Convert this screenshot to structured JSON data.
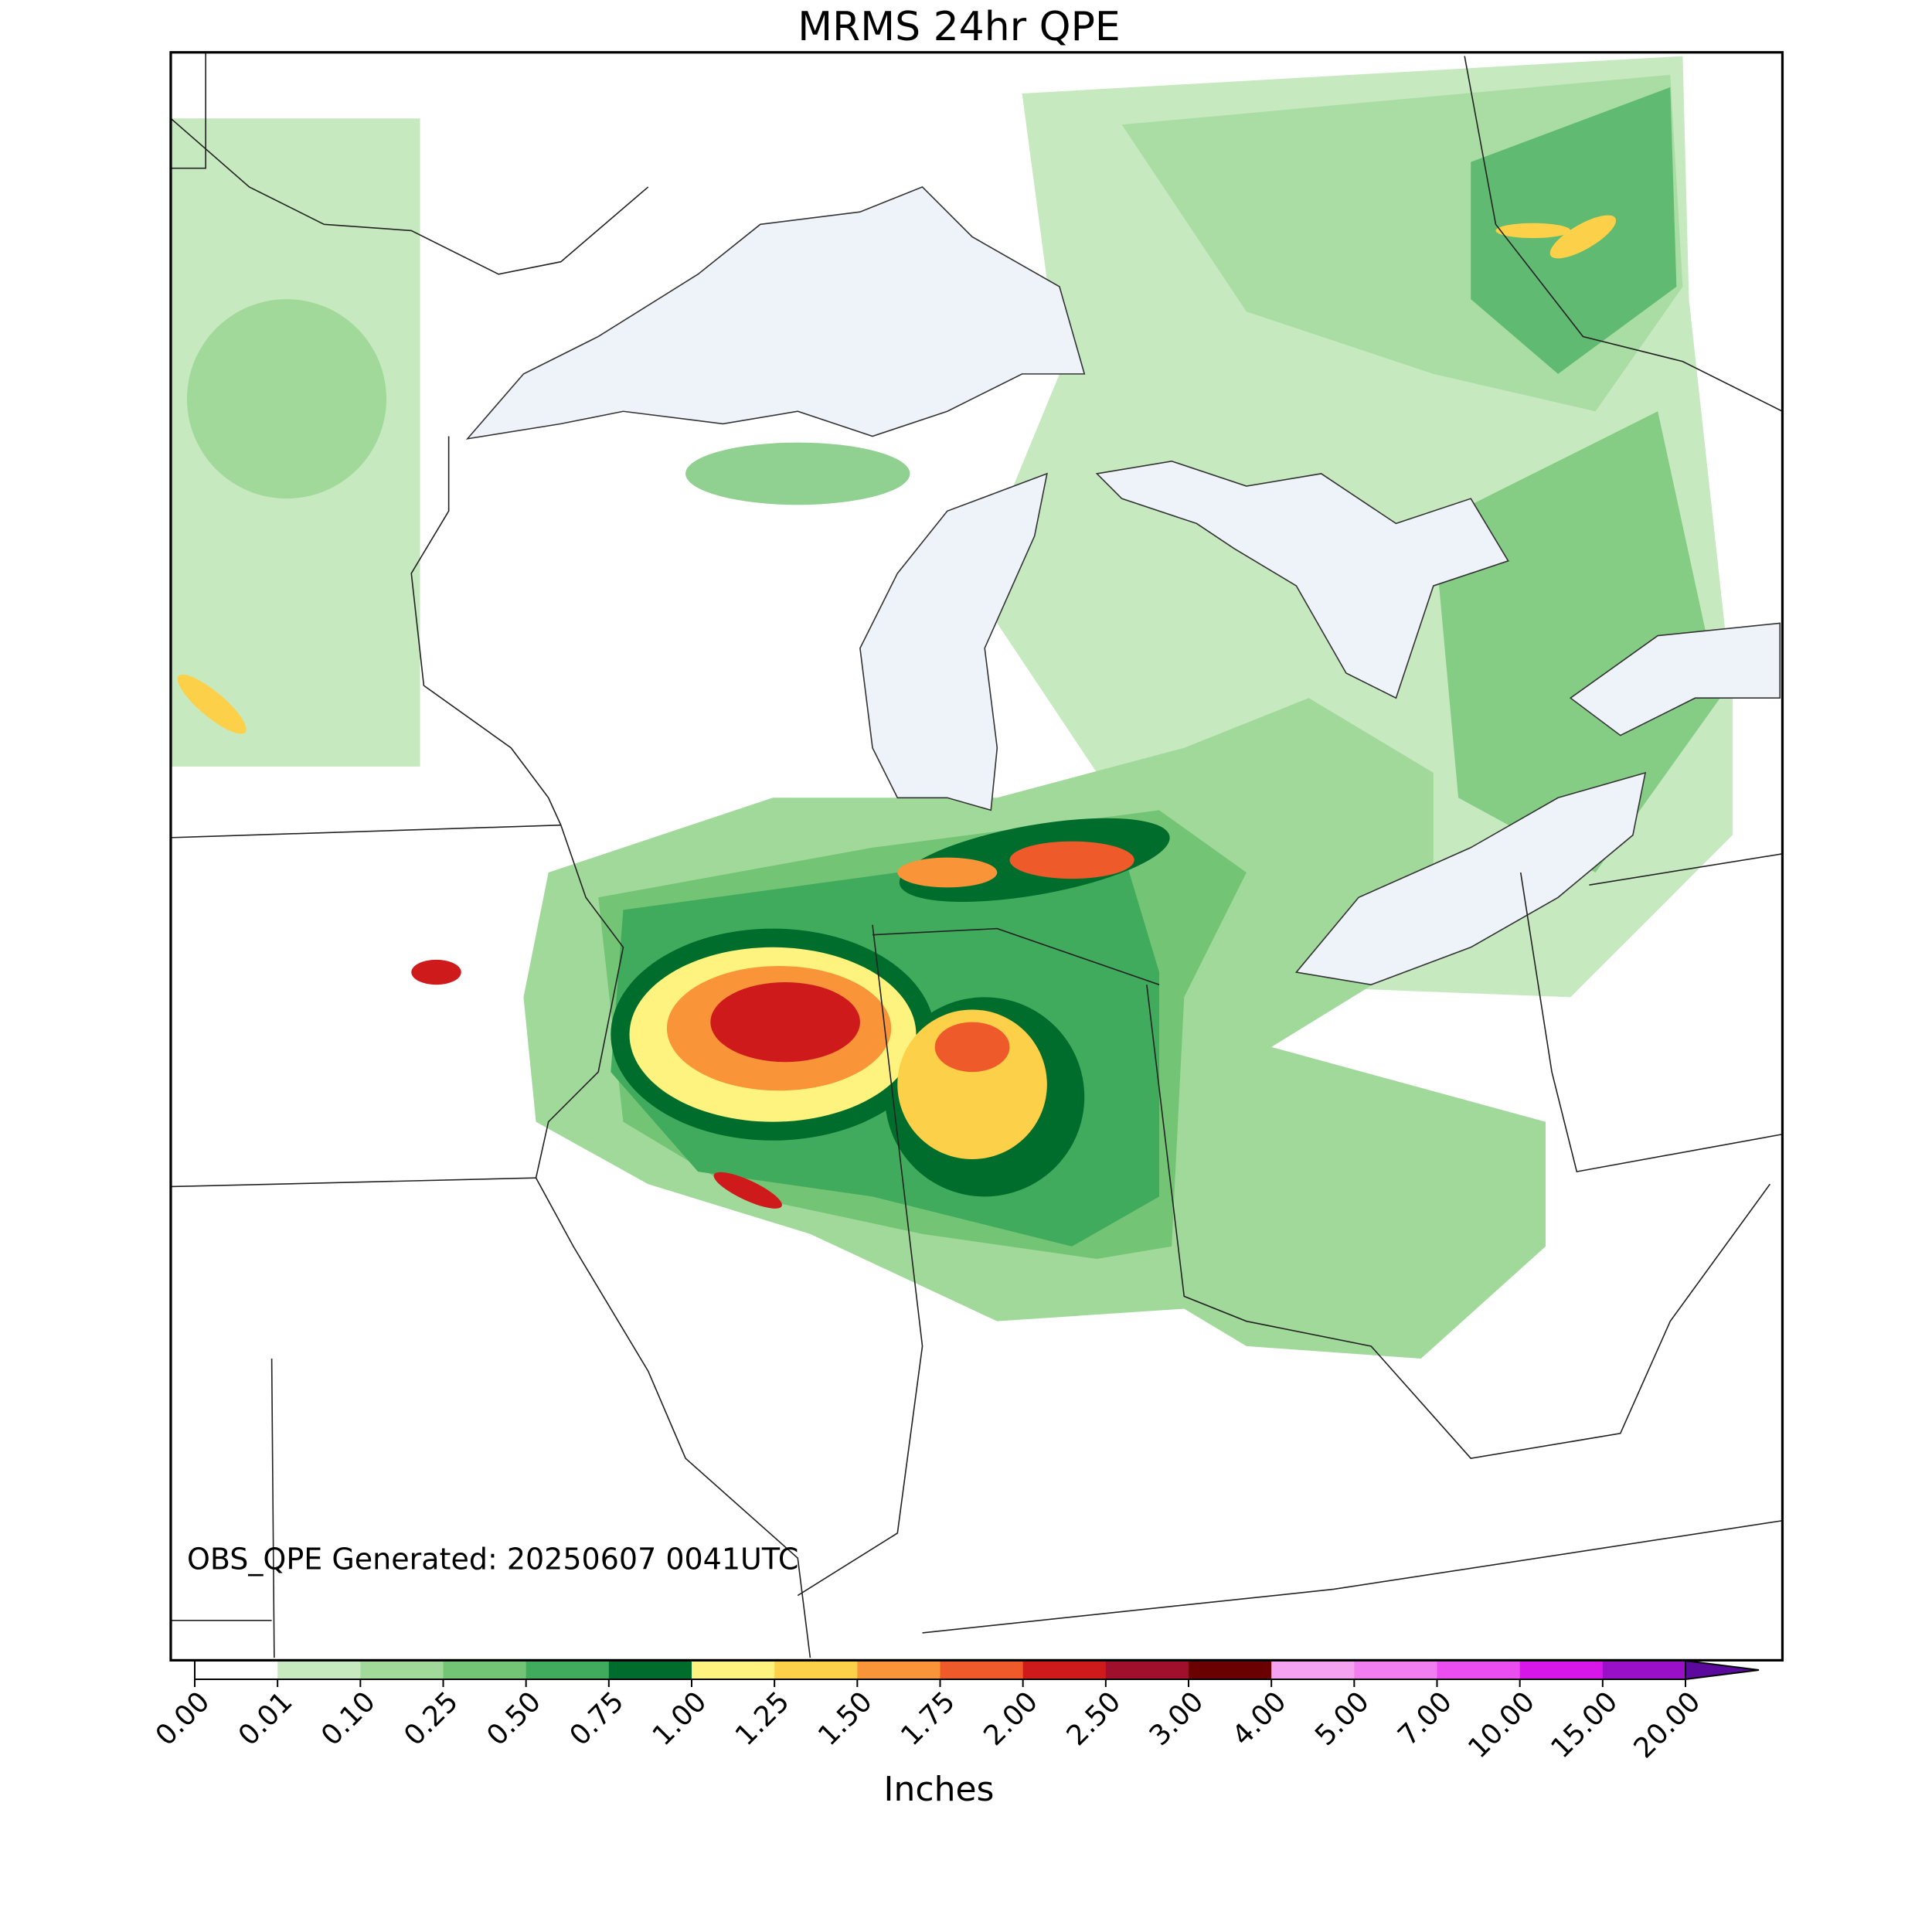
{
  "title": "MRMS 24hr QPE",
  "annotation": "OBS_QPE Generated: 20250607 0041UTC",
  "colorbar": {
    "label": "Inches",
    "ticks": [
      {
        "value": 0,
        "label": "0.00"
      },
      {
        "value": 0.01,
        "label": "0.01"
      },
      {
        "value": 0.1,
        "label": "0.10"
      },
      {
        "value": 0.25,
        "label": "0.25"
      },
      {
        "value": 0.5,
        "label": "0.50"
      },
      {
        "value": 0.75,
        "label": "0.75"
      },
      {
        "value": 1,
        "label": "1.00"
      },
      {
        "value": 1.25,
        "label": "1.25"
      },
      {
        "value": 1.5,
        "label": "1.50"
      },
      {
        "value": 1.75,
        "label": "1.75"
      },
      {
        "value": 2,
        "label": "2.00"
      },
      {
        "value": 2.5,
        "label": "2.50"
      },
      {
        "value": 3,
        "label": "3.00"
      },
      {
        "value": 4,
        "label": "4.00"
      },
      {
        "value": 5,
        "label": "5.00"
      },
      {
        "value": 7,
        "label": "7.00"
      },
      {
        "value": 10,
        "label": "10.00"
      },
      {
        "value": 15,
        "label": "15.00"
      },
      {
        "value": 20,
        "label": "20.00"
      }
    ],
    "colors": [
      "#ffffff",
      "#c7e9c0",
      "#a1d99b",
      "#74c476",
      "#41ab5d",
      "#006d2c",
      "#fff380",
      "#fdd049",
      "#f99439",
      "#ef5a2b",
      "#cf1a1c",
      "#a0102c",
      "#6b0000",
      "#f5a3f0",
      "#f07ef0",
      "#ea4ef0",
      "#d617e8",
      "#9a10c8"
    ],
    "extend": "max",
    "over_color": "#5c0a9e"
  }
}
